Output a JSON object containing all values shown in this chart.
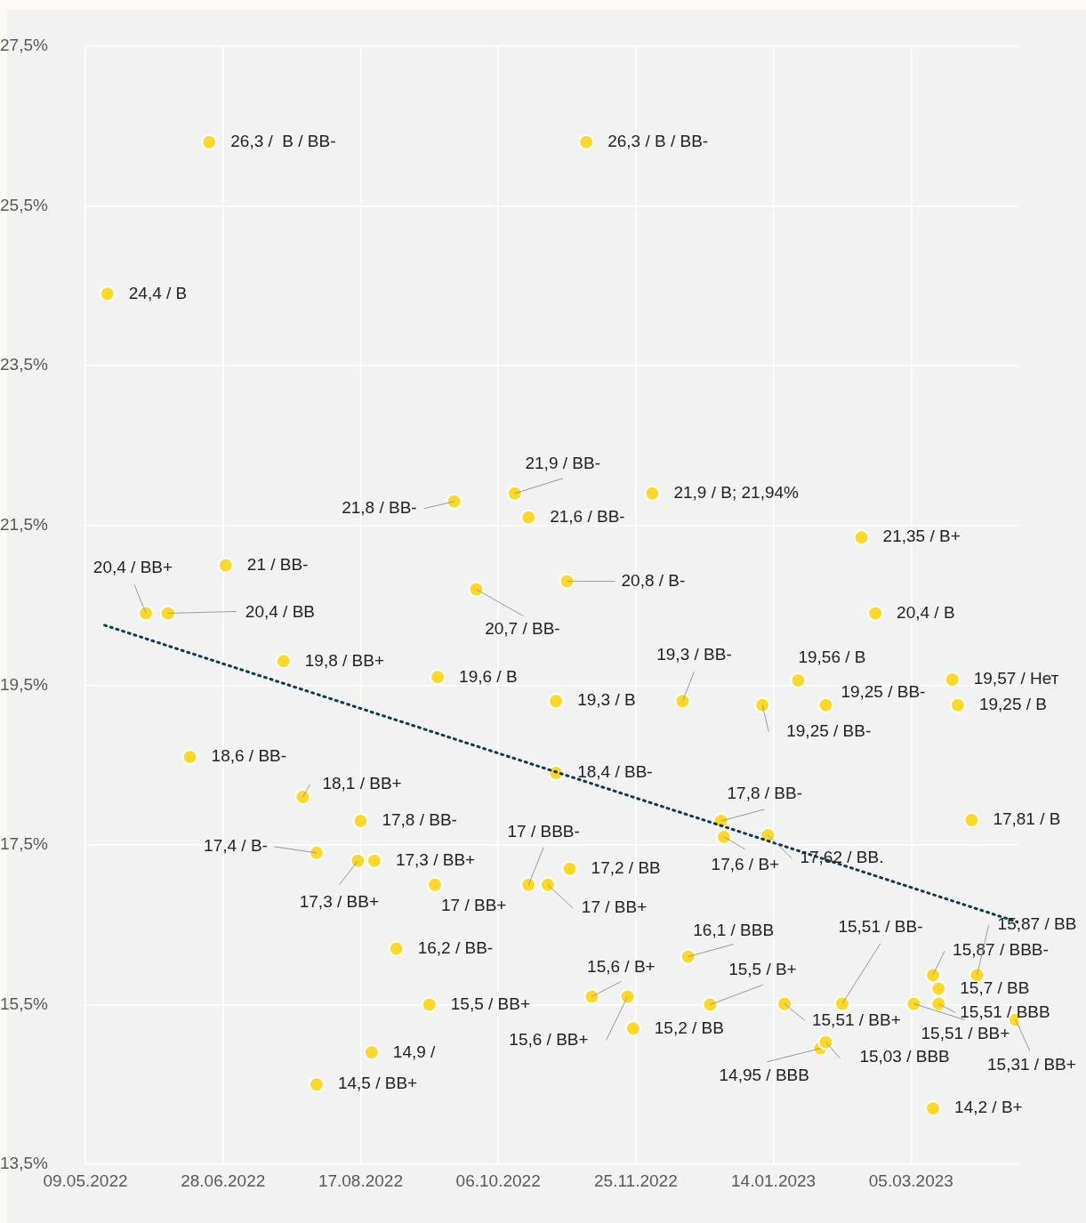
{
  "chart_data": {
    "type": "scatter",
    "xlim": [
      "2022-05-09",
      "2023-04-13"
    ],
    "ylim": [
      13.5,
      27.5
    ],
    "xticks": [
      {
        "value": "2022-05-09",
        "label": "09.05.2022"
      },
      {
        "value": "2022-06-28",
        "label": "28.06.2022"
      },
      {
        "value": "2022-08-17",
        "label": "17.08.2022"
      },
      {
        "value": "2022-10-06",
        "label": "06.10.2022"
      },
      {
        "value": "2022-11-25",
        "label": "25.11.2022"
      },
      {
        "value": "2023-01-14",
        "label": "14.01.2023"
      },
      {
        "value": "2023-03-05",
        "label": "05.03.2023"
      }
    ],
    "yticks": [
      {
        "value": 13.5,
        "label": "13,5%"
      },
      {
        "value": 15.5,
        "label": "15,5%"
      },
      {
        "value": 17.5,
        "label": "17,5%"
      },
      {
        "value": 19.5,
        "label": "19,5%"
      },
      {
        "value": 21.5,
        "label": "21,5%"
      },
      {
        "value": 23.5,
        "label": "23,5%"
      },
      {
        "value": 25.5,
        "label": "25,5%"
      },
      {
        "value": 27.5,
        "label": "27,5%"
      }
    ],
    "grid": true,
    "marker": "circle",
    "series": [
      {
        "color": "#fdd72a",
        "x": [
          "2022-05-17",
          "2022-05-31",
          "2022-06-08",
          "2022-06-16",
          "2022-06-23",
          "2022-06-29",
          "2022-07-20",
          "2022-07-27",
          "2022-08-01",
          "2022-08-01",
          "2022-08-16",
          "2022-08-17",
          "2022-08-21",
          "2022-08-22",
          "2022-08-30",
          "2022-09-11",
          "2022-09-13",
          "2022-09-14",
          "2022-09-20",
          "2022-09-28",
          "2022-10-12",
          "2022-10-17",
          "2022-10-17",
          "2022-10-24",
          "2022-10-27",
          "2022-10-27",
          "2022-10-31",
          "2022-11-01",
          "2022-11-07",
          "2022-11-09",
          "2022-11-22",
          "2022-11-24",
          "2022-12-01",
          "2022-12-12",
          "2022-12-14",
          "2022-12-22",
          "2022-12-26",
          "2022-12-27",
          "2023-01-10",
          "2023-01-12",
          "2023-01-18",
          "2023-01-23",
          "2023-01-31",
          "2023-02-02",
          "2023-02-02",
          "2023-02-08",
          "2023-02-15",
          "2023-02-20",
          "2023-03-06",
          "2023-03-13",
          "2023-03-13",
          "2023-03-15",
          "2023-03-15",
          "2023-03-20",
          "2023-03-22",
          "2023-03-27",
          "2023-03-29",
          "2023-04-12"
        ],
        "values": [
          24.4,
          20.4,
          20.4,
          18.6,
          26.3,
          21,
          19.8,
          18.1,
          17.4,
          14.5,
          17.3,
          17.8,
          14.9,
          17.3,
          16.2,
          15.5,
          17,
          19.6,
          21.8,
          20.7,
          21.9,
          17,
          21.6,
          17,
          19.3,
          18.4,
          20.8,
          17.2,
          26.3,
          15.6,
          15.6,
          15.2,
          21.9,
          19.3,
          16.1,
          15.5,
          17.8,
          17.6,
          19.25,
          17.62,
          15.51,
          19.56,
          14.95,
          15.03,
          19.25,
          15.51,
          21.35,
          20.4,
          15.51,
          15.87,
          14.2,
          15.7,
          15.51,
          19.57,
          19.25,
          17.81,
          15.87,
          15.31
        ]
      },
      {
        "type": "line",
        "color": "#0d3b4f",
        "line_style": "dotted",
        "marker": "none",
        "x": [
          "2022-05-16",
          "2023-04-13"
        ],
        "values": [
          20.25,
          16.53
        ]
      }
    ],
    "annotations": [
      {
        "text": "24,4 / B",
        "x": "2022-05-17",
        "y": 24.4
      },
      {
        "text": "20,4 / BB+",
        "x": "2022-05-31",
        "y": 20.4
      },
      {
        "text": "20,4 / BB",
        "x": "2022-06-08",
        "y": 20.4
      },
      {
        "text": "18,6 / BB-",
        "x": "2022-06-16",
        "y": 18.6
      },
      {
        "text": "26,3 /  B / BB-",
        "x": "2022-06-23",
        "y": 26.3
      },
      {
        "text": "21 / BB-",
        "x": "2022-06-29",
        "y": 21
      },
      {
        "text": "19,8 / BB+",
        "x": "2022-07-20",
        "y": 19.8
      },
      {
        "text": "18,1 / BB+",
        "x": "2022-07-27",
        "y": 18.1
      },
      {
        "text": "17,4 / B-",
        "x": "2022-08-01",
        "y": 17.4
      },
      {
        "text": "14,5 / BB+",
        "x": "2022-08-01",
        "y": 14.5
      },
      {
        "text": "17,3 / BB+",
        "x": "2022-08-16",
        "y": 17.3
      },
      {
        "text": "17,8 / BB-",
        "x": "2022-08-17",
        "y": 17.8
      },
      {
        "text": "14,9 /",
        "x": "2022-08-21",
        "y": 14.9
      },
      {
        "text": "17,3 / BB+",
        "x": "2022-08-22",
        "y": 17.3
      },
      {
        "text": "16,2 / BB-",
        "x": "2022-08-30",
        "y": 16.2
      },
      {
        "text": "15,5 / BB+",
        "x": "2022-09-11",
        "y": 15.5
      },
      {
        "text": "17 / BB+",
        "x": "2022-09-13",
        "y": 17
      },
      {
        "text": "19,6 / B",
        "x": "2022-09-14",
        "y": 19.6
      },
      {
        "text": "21,8 / BB-",
        "x": "2022-09-20",
        "y": 21.8
      },
      {
        "text": "20,7 / BB-",
        "x": "2022-09-28",
        "y": 20.7
      },
      {
        "text": "21,9 / BB-",
        "x": "2022-10-12",
        "y": 21.9
      },
      {
        "text": "17 / BBB-",
        "x": "2022-10-17",
        "y": 17
      },
      {
        "text": "21,6 / BB-",
        "x": "2022-10-17",
        "y": 21.6
      },
      {
        "text": "17 / BB+",
        "x": "2022-10-24",
        "y": 17
      },
      {
        "text": "19,3 / B",
        "x": "2022-10-27",
        "y": 19.3
      },
      {
        "text": "18,4 / BB-",
        "x": "2022-10-27",
        "y": 18.4
      },
      {
        "text": "20,8 / B-",
        "x": "2022-10-31",
        "y": 20.8
      },
      {
        "text": "17,2 / BB",
        "x": "2022-11-01",
        "y": 17.2
      },
      {
        "text": "26,3 / B / BB-",
        "x": "2022-11-07",
        "y": 26.3
      },
      {
        "text": "15,6 / B+",
        "x": "2022-11-09",
        "y": 15.6
      },
      {
        "text": "15,6 / BB+",
        "x": "2022-11-22",
        "y": 15.6
      },
      {
        "text": "15,2 / BB",
        "x": "2022-11-24",
        "y": 15.2
      },
      {
        "text": "21,9 / B; 21,94%",
        "x": "2022-12-01",
        "y": 21.9
      },
      {
        "text": "19,3 / BB-",
        "x": "2022-12-12",
        "y": 19.3
      },
      {
        "text": "16,1 / BBB",
        "x": "2022-12-14",
        "y": 16.1
      },
      {
        "text": "15,5 / B+",
        "x": "2022-12-22",
        "y": 15.5
      },
      {
        "text": "17,8 / BB-",
        "x": "2022-12-26",
        "y": 17.8
      },
      {
        "text": "17,6 / B+",
        "x": "2022-12-27",
        "y": 17.6
      },
      {
        "text": "19,25 / BB-",
        "x": "2023-01-10",
        "y": 19.25
      },
      {
        "text": "17,62 / BB.",
        "x": "2023-01-12",
        "y": 17.62
      },
      {
        "text": "15,51 / BB+",
        "x": "2023-01-18",
        "y": 15.51
      },
      {
        "text": "19,56 / B",
        "x": "2023-01-23",
        "y": 19.56
      },
      {
        "text": "14,95 / BBB",
        "x": "2023-01-31",
        "y": 14.95
      },
      {
        "text": "15,03 / BBB",
        "x": "2023-02-02",
        "y": 15.03
      },
      {
        "text": "19,25 / BB-",
        "x": "2023-02-02",
        "y": 19.25
      },
      {
        "text": "15,51 / BB-",
        "x": "2023-02-08",
        "y": 15.51
      },
      {
        "text": "21,35 / B+",
        "x": "2023-02-15",
        "y": 21.35
      },
      {
        "text": "20,4 / B",
        "x": "2023-02-20",
        "y": 20.4
      },
      {
        "text": "15,51 / BB+",
        "x": "2023-03-06",
        "y": 15.51
      },
      {
        "text": "15,87 / BBB-",
        "x": "2023-03-13",
        "y": 15.87
      },
      {
        "text": "14,2 / B+",
        "x": "2023-03-13",
        "y": 14.2
      },
      {
        "text": "15,7 / BB",
        "x": "2023-03-15",
        "y": 15.7
      },
      {
        "text": "15,51 / BBB",
        "x": "2023-03-15",
        "y": 15.51
      },
      {
        "text": "19,57 / Нет",
        "x": "2023-03-20",
        "y": 19.57
      },
      {
        "text": "19,25 / B",
        "x": "2023-03-22",
        "y": 19.25
      },
      {
        "text": "17,81 / B",
        "x": "2023-03-27",
        "y": 17.81
      },
      {
        "text": "15,87 / BB",
        "x": "2023-03-29",
        "y": 15.87
      },
      {
        "text": "15,31 / BB+",
        "x": "2023-04-12",
        "y": 15.31
      }
    ]
  }
}
